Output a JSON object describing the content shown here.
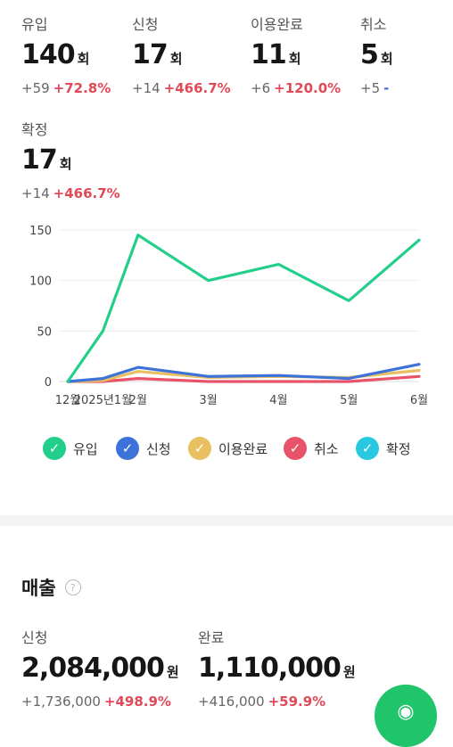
{
  "stats": [
    {
      "label": "유입",
      "value": "140",
      "unit": "회",
      "change": "+59",
      "pct": "+72.8%"
    },
    {
      "label": "신청",
      "value": "17",
      "unit": "회",
      "change": "+14",
      "pct": "+466.7%"
    },
    {
      "label": "이용완료",
      "value": "11",
      "unit": "회",
      "change": "+6",
      "pct": "+120.0%"
    },
    {
      "label": "취소",
      "value": "5",
      "unit": "회",
      "change": "+5",
      "pct": "-"
    },
    {
      "label": "확정",
      "value": "17",
      "unit": "회",
      "change": "+14",
      "pct": "+466.7%"
    }
  ],
  "chart_data": {
    "type": "line",
    "categories": [
      "12월",
      "2025년1월",
      "2월",
      "3월",
      "4월",
      "5월",
      "6월"
    ],
    "x_positions": [
      0,
      0.5,
      1,
      2,
      3,
      4,
      5
    ],
    "ylim": [
      0,
      150
    ],
    "yticks": [
      0,
      50,
      100,
      150
    ],
    "grid": true,
    "legend_position": "bottom",
    "series": [
      {
        "name": "유입",
        "color": "#22cf8a",
        "values": [
          0,
          50,
          145,
          100,
          116,
          80,
          140
        ]
      },
      {
        "name": "신청",
        "color": "#3d72d8",
        "values": [
          0,
          3,
          14,
          5,
          6,
          3,
          17
        ]
      },
      {
        "name": "이용완료",
        "color": "#e8c062",
        "values": [
          0,
          1,
          10,
          4,
          5,
          4,
          11
        ]
      },
      {
        "name": "취소",
        "color": "#e8536a",
        "values": [
          0,
          0,
          3,
          0,
          0,
          0,
          5
        ]
      },
      {
        "name": "확정",
        "color": "#27c8e0",
        "values": [
          0,
          3,
          14,
          5,
          6,
          3,
          17
        ]
      }
    ]
  },
  "sales": {
    "title": "매출",
    "help_icon": "question-icon",
    "items": [
      {
        "label": "신청",
        "value": "2,084,000",
        "unit": "원",
        "change": "+1,736,000",
        "pct": "+498.9%"
      },
      {
        "label": "완료",
        "value": "1,110,000",
        "unit": "원",
        "change": "+416,000",
        "pct": "+59.9%"
      }
    ]
  },
  "fab": {
    "icon": "chat-icon",
    "color": "#1fc46b"
  }
}
